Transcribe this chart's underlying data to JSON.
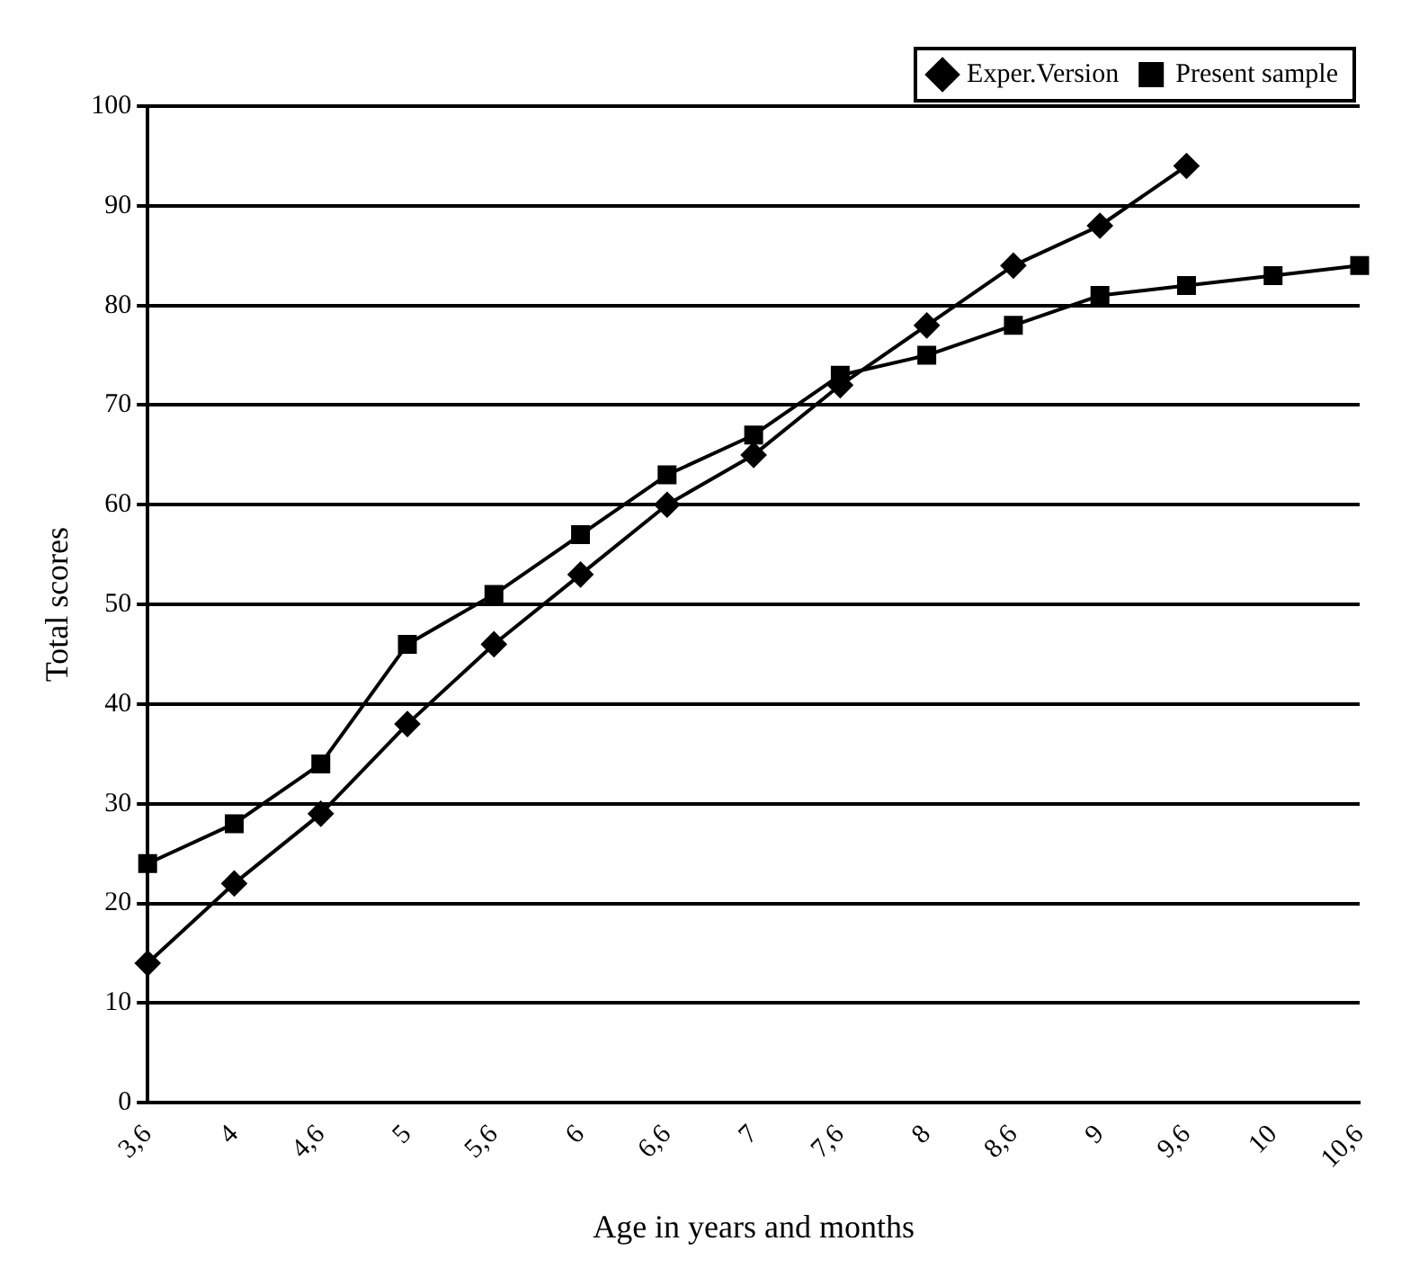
{
  "chart_data": {
    "type": "line",
    "xlabel": "Age in years and months",
    "ylabel": "Total scores",
    "categories": [
      "3,6",
      "4",
      "4,6",
      "5",
      "5,6",
      "6",
      "6,6",
      "7",
      "7,6",
      "8",
      "8,6",
      "9",
      "9,6",
      "10",
      "10,6"
    ],
    "series": [
      {
        "name": "Exper.Version",
        "color": "#000000",
        "marker": "diamond",
        "values": [
          14,
          22,
          29,
          38,
          46,
          53,
          60,
          65,
          72,
          78,
          84,
          88,
          94,
          null,
          null
        ]
      },
      {
        "name": "Present sample",
        "color": "#000000",
        "marker": "square",
        "values": [
          24,
          28,
          34,
          46,
          51,
          57,
          63,
          67,
          73,
          75,
          78,
          81,
          82,
          83,
          84
        ]
      }
    ],
    "ylim": [
      0,
      100
    ],
    "yticks": [
      0,
      10,
      20,
      30,
      40,
      50,
      60,
      70,
      80,
      90,
      100
    ],
    "grid": "y",
    "legend": "top right",
    "line_style": "solid"
  }
}
